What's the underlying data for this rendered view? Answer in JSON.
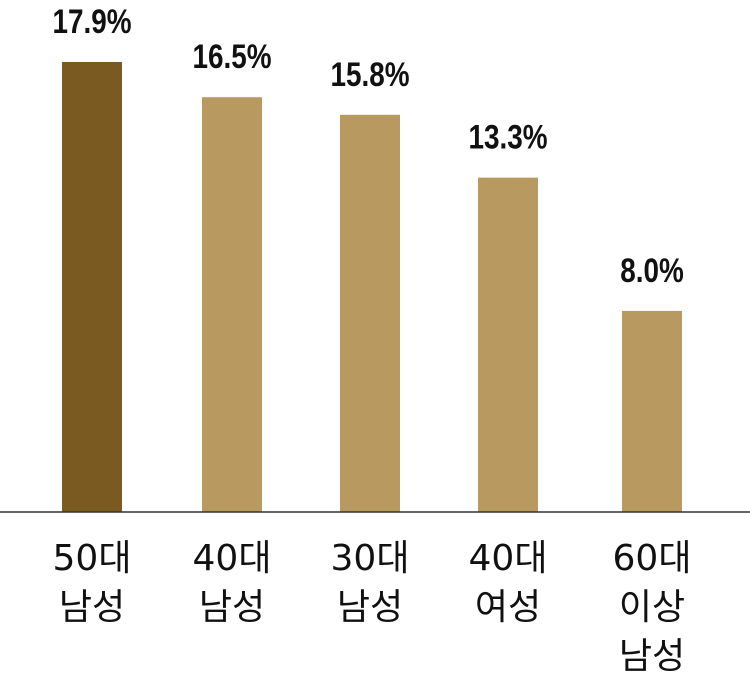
{
  "chart_data": {
    "type": "bar",
    "categories": [
      [
        "50대",
        "남성"
      ],
      [
        "40대",
        "남성"
      ],
      [
        "30대",
        "남성"
      ],
      [
        "40대",
        "여성"
      ],
      [
        "60대",
        "이상",
        "남성"
      ]
    ],
    "values": [
      17.9,
      16.5,
      15.8,
      13.3,
      8.0
    ],
    "value_labels": [
      "17.9%",
      "16.5%",
      "15.8%",
      "13.3%",
      "8.0%"
    ],
    "colors": [
      "#7b5a22",
      "#b89a60",
      "#b89a60",
      "#b89a60",
      "#b89a60"
    ]
  }
}
